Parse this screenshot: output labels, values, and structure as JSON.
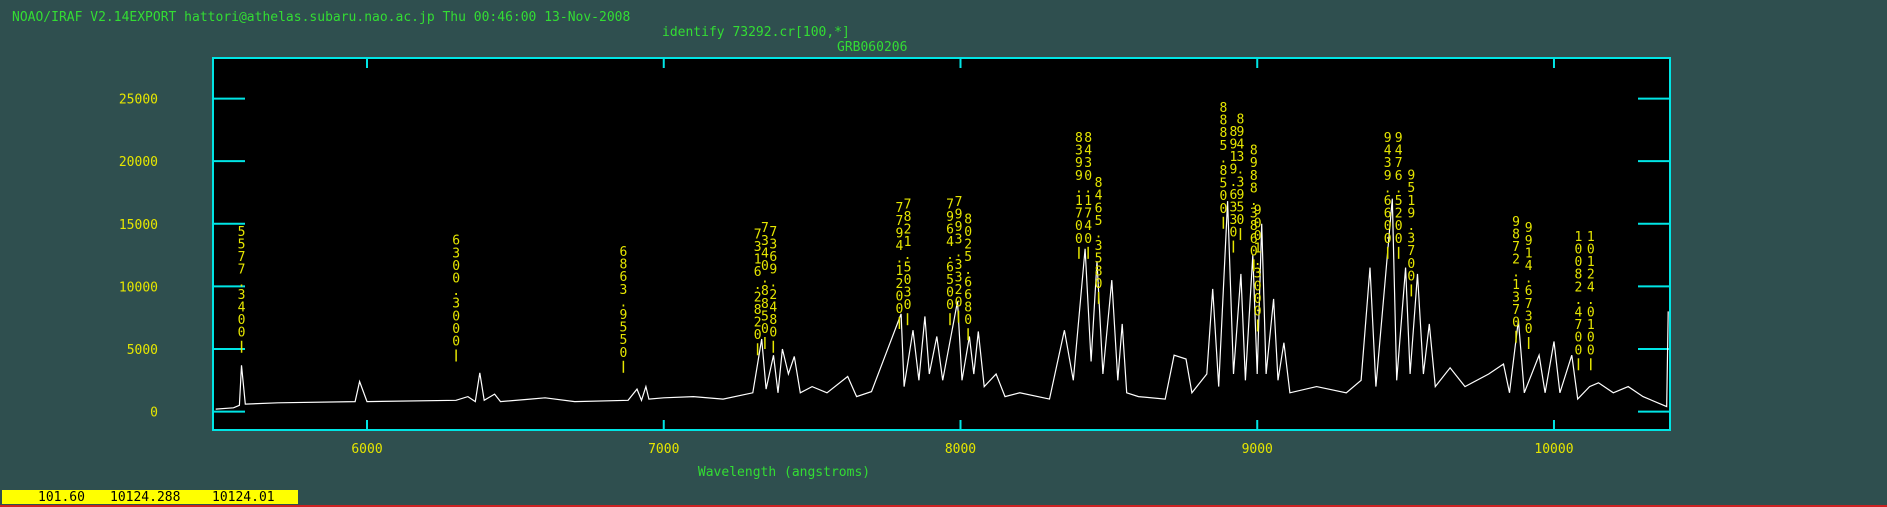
{
  "header": {
    "line": "NOAO/IRAF V2.14EXPORT hattori@athelas.subaru.nao.ac.jp Thu 00:46:00 13-Nov-2008"
  },
  "status": [
    "101.60",
    "10124.288",
    "10124.01"
  ],
  "chart_data": {
    "type": "line",
    "subtitle": "identify 73292.cr[100,*]",
    "title": "GRB060206",
    "xlabel": "Wavelength (angstroms)",
    "color": "#ffffff",
    "x": [
      5490,
      5550,
      5570,
      5577,
      5590,
      5700,
      5960,
      5975,
      6000,
      6300,
      6340,
      6365,
      6380,
      6395,
      6430,
      6450,
      6550,
      6600,
      6700,
      6880,
      6910,
      6925,
      6940,
      6950,
      7000,
      7100,
      7200,
      7300,
      7330,
      7345,
      7370,
      7385,
      7400,
      7420,
      7440,
      7460,
      7500,
      7550,
      7620,
      7650,
      7700,
      7800,
      7810,
      7840,
      7860,
      7880,
      7895,
      7920,
      7940,
      7990,
      8005,
      8030,
      8045,
      8060,
      8080,
      8120,
      8150,
      8200,
      8300,
      8350,
      8380,
      8420,
      8440,
      8460,
      8480,
      8510,
      8530,
      8545,
      8560,
      8600,
      8690,
      8720,
      8760,
      8780,
      8830,
      8850,
      8870,
      8900,
      8920,
      8945,
      8960,
      8985,
      9000,
      9015,
      9030,
      9055,
      9070,
      9090,
      9110,
      9200,
      9300,
      9350,
      9380,
      9400,
      9455,
      9470,
      9500,
      9515,
      9540,
      9560,
      9580,
      9600,
      9650,
      9700,
      9780,
      9830,
      9850,
      9880,
      9900,
      9950,
      9970,
      10000,
      10020,
      10060,
      10080,
      10120,
      10150,
      10200,
      10250,
      10300,
      10380,
      10385
    ],
    "values": [
      200,
      300,
      500,
      3700,
      600,
      700,
      800,
      2400,
      800,
      900,
      1200,
      800,
      3100,
      900,
      1400,
      800,
      1000,
      1100,
      800,
      900,
      1800,
      900,
      2000,
      1000,
      1100,
      1200,
      1000,
      1500,
      5800,
      1800,
      4500,
      1500,
      5000,
      3000,
      4400,
      1500,
      2000,
      1500,
      2800,
      1200,
      1600,
      7800,
      2000,
      6500,
      2500,
      7600,
      3000,
      6000,
      2500,
      8800,
      2500,
      6000,
      3000,
      6400,
      2000,
      3000,
      1200,
      1500,
      1000,
      6500,
      2500,
      13000,
      4000,
      12000,
      3000,
      10500,
      2500,
      7000,
      1500,
      1200,
      1000,
      4500,
      4200,
      1500,
      3000,
      9800,
      2000,
      16800,
      3000,
      11000,
      2500,
      12500,
      3000,
      15000,
      3000,
      9000,
      2500,
      5500,
      1500,
      2000,
      1500,
      2500,
      11500,
      2000,
      17000,
      2500,
      11500,
      3000,
      11000,
      3000,
      7000,
      2000,
      3500,
      2000,
      3000,
      3800,
      1500,
      7300,
      1500,
      4500,
      1500,
      5600,
      1500,
      4500,
      1000,
      2000,
      2300,
      1500,
      2000,
      1200,
      400,
      8000
    ],
    "xlim": [
      5481,
      10391
    ],
    "ylim": [
      -1470,
      28240
    ],
    "xticks": [
      6000,
      7000,
      8000,
      9000,
      10000
    ],
    "yticks": [
      0,
      5000,
      10000,
      15000,
      20000,
      25000
    ],
    "lines": [
      {
        "wavelength": 5577.34,
        "label": "5577.3400",
        "y": 4700
      },
      {
        "wavelength": 6300.3,
        "label": "6300.3000",
        "y": 4000
      },
      {
        "wavelength": 6863.955,
        "label": "6863.9550",
        "y": 3100
      },
      {
        "wavelength": 7316.282,
        "label": "7316.2820",
        "y": 4500
      },
      {
        "wavelength": 7340.885,
        "label": "7340.8850",
        "y": 5000
      },
      {
        "wavelength": 7369.248,
        "label": "7369.2480",
        "y": 4700
      },
      {
        "wavelength": 7794.12,
        "label": "7794.1200",
        "y": 6600
      },
      {
        "wavelength": 7821.503,
        "label": "7821.5030",
        "y": 6900
      },
      {
        "wavelength": 7964.65,
        "label": "7964.6500",
        "y": 6900
      },
      {
        "wavelength": 7993.332,
        "label": "7993.3320",
        "y": 7100
      },
      {
        "wavelength": 8025.668,
        "label": "8025.6680",
        "y": 5700
      },
      {
        "wavelength": 8399.17,
        "label": "8399.1700",
        "y": 12200
      },
      {
        "wavelength": 8430.174,
        "label": "8430.1740",
        "y": 12200
      },
      {
        "wavelength": 8465.358,
        "label": "8465.3580",
        "y": 8600
      },
      {
        "wavelength": 8885.85,
        "label": "8885.8500",
        "y": 14600
      },
      {
        "wavelength": 8919.633,
        "label": "8919.6330",
        "y": 12700
      },
      {
        "wavelength": 8943.395,
        "label": "8943.3950",
        "y": 13700
      },
      {
        "wavelength": 8988.386,
        "label": "8988.3860",
        "y": 11200
      },
      {
        "wavelength": 9001.3,
        "label": "9001.3000",
        "y": 6400
      },
      {
        "wavelength": 9439.66,
        "label": "9439.6600",
        "y": 12200
      },
      {
        "wavelength": 9476.52,
        "label": "9476.5200",
        "y": 12200
      },
      {
        "wavelength": 9519.37,
        "label": "9519.3700",
        "y": 9200
      },
      {
        "wavelength": 9872.137,
        "label": "9872.1370",
        "y": 5500
      },
      {
        "wavelength": 9914.673,
        "label": "9914.6730",
        "y": 5000
      },
      {
        "wavelength": 10082.47,
        "label": "10082.4700",
        "y": 3300
      },
      {
        "wavelength": 10124.01,
        "label": "10124.0100",
        "y": 3300
      }
    ]
  }
}
